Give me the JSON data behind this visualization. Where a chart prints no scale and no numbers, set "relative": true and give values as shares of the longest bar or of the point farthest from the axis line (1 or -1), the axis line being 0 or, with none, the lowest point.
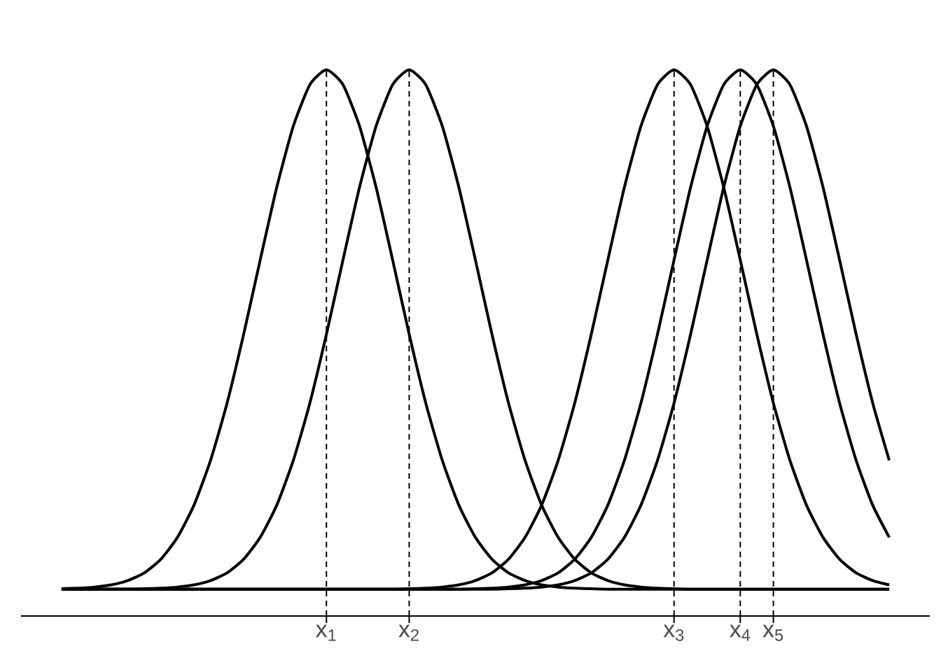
{
  "chart_data": {
    "type": "line",
    "relative": true,
    "categories": [
      null,
      null,
      null,
      null,
      null,
      null,
      null,
      null,
      null,
      null,
      null,
      null,
      null,
      null,
      null,
      null,
      "x$_{1}$",
      null,
      null,
      null,
      null,
      "x$_{2}$",
      null,
      null,
      null,
      null,
      null,
      null,
      null,
      null,
      null,
      null,
      null,
      null,
      null,
      null,
      null,
      "x$_{3}$",
      null,
      null,
      null,
      "x$_{4}$",
      null,
      "x$_{5}$",
      null,
      null,
      null,
      null,
      null,
      null,
      null
    ],
    "ref_lines": [
      {
        "axis": "x",
        "value": "x$_{1}$",
        "line_style": "dashed"
      },
      {
        "axis": "x",
        "value": "x$_{2}$",
        "line_style": "dashed"
      },
      {
        "axis": "x",
        "value": "x$_{3}$",
        "line_style": "dashed"
      },
      {
        "axis": "x",
        "value": "x$_{4}$",
        "line_style": "dashed"
      },
      {
        "axis": "x",
        "value": "x$_{5}$",
        "line_style": "dashed"
      }
    ],
    "series": [
      {
        "color": "#000000",
        "values": [
          0.05,
          0.051,
          0.053,
          0.057,
          0.065,
          0.079,
          0.104,
          0.144,
          0.203,
          0.285,
          0.39,
          0.516,
          0.652,
          0.785,
          0.897,
          0.973,
          1,
          0.973,
          0.897,
          0.785,
          0.652,
          0.516,
          0.39,
          0.285,
          0.203,
          0.144,
          0.104,
          0.079,
          0.065,
          0.057,
          0.053,
          0.051,
          0.05,
          0.049,
          0.049,
          0.049,
          0.049,
          0.049,
          0.049,
          0.049,
          0.049,
          0.049,
          0.049,
          0.049,
          0.049,
          0.049,
          0.049,
          0.049,
          0.049,
          0.049,
          0.049
        ]
      },
      {
        "color": "#000000",
        "values": [
          0.049,
          0.049,
          0.049,
          0.049,
          0.049,
          0.05,
          0.051,
          0.053,
          0.057,
          0.065,
          0.079,
          0.104,
          0.144,
          0.203,
          0.285,
          0.39,
          0.516,
          0.652,
          0.785,
          0.897,
          0.973,
          1,
          0.973,
          0.897,
          0.785,
          0.652,
          0.516,
          0.39,
          0.285,
          0.203,
          0.144,
          0.104,
          0.079,
          0.065,
          0.057,
          0.053,
          0.051,
          0.05,
          0.049,
          0.049,
          0.049,
          0.049,
          0.049,
          0.049,
          0.049,
          0.049,
          0.049,
          0.049,
          0.049,
          0.049,
          0.049
        ]
      },
      {
        "color": "#000000",
        "values": [
          0.049,
          0.049,
          0.049,
          0.049,
          0.049,
          0.049,
          0.049,
          0.049,
          0.049,
          0.049,
          0.049,
          0.049,
          0.049,
          0.049,
          0.049,
          0.049,
          0.049,
          0.049,
          0.049,
          0.049,
          0.049,
          0.05,
          0.051,
          0.053,
          0.057,
          0.065,
          0.079,
          0.104,
          0.144,
          0.203,
          0.285,
          0.39,
          0.516,
          0.652,
          0.785,
          0.897,
          0.973,
          1,
          0.973,
          0.897,
          0.785,
          0.652,
          0.516,
          0.39,
          0.285,
          0.203,
          0.144,
          0.104,
          0.079,
          0.065,
          0.057
        ]
      },
      {
        "color": "#000000",
        "values": [
          0.049,
          0.049,
          0.049,
          0.049,
          0.049,
          0.049,
          0.049,
          0.049,
          0.049,
          0.049,
          0.049,
          0.049,
          0.049,
          0.049,
          0.049,
          0.049,
          0.049,
          0.049,
          0.049,
          0.049,
          0.049,
          0.049,
          0.049,
          0.049,
          0.049,
          0.05,
          0.051,
          0.053,
          0.057,
          0.065,
          0.079,
          0.104,
          0.144,
          0.203,
          0.285,
          0.39,
          0.516,
          0.652,
          0.785,
          0.897,
          0.973,
          1,
          0.973,
          0.897,
          0.785,
          0.652,
          0.516,
          0.39,
          0.285,
          0.203,
          0.144
        ]
      },
      {
        "color": "#000000",
        "values": [
          0.049,
          0.049,
          0.049,
          0.049,
          0.049,
          0.049,
          0.049,
          0.049,
          0.049,
          0.049,
          0.049,
          0.049,
          0.049,
          0.049,
          0.049,
          0.049,
          0.049,
          0.049,
          0.049,
          0.049,
          0.049,
          0.049,
          0.049,
          0.049,
          0.049,
          0.049,
          0.049,
          0.05,
          0.051,
          0.053,
          0.057,
          0.065,
          0.079,
          0.104,
          0.144,
          0.203,
          0.285,
          0.39,
          0.516,
          0.652,
          0.785,
          0.897,
          0.973,
          1,
          0.973,
          0.897,
          0.785,
          0.652,
          0.516,
          0.39,
          0.285
        ]
      }
    ]
  }
}
